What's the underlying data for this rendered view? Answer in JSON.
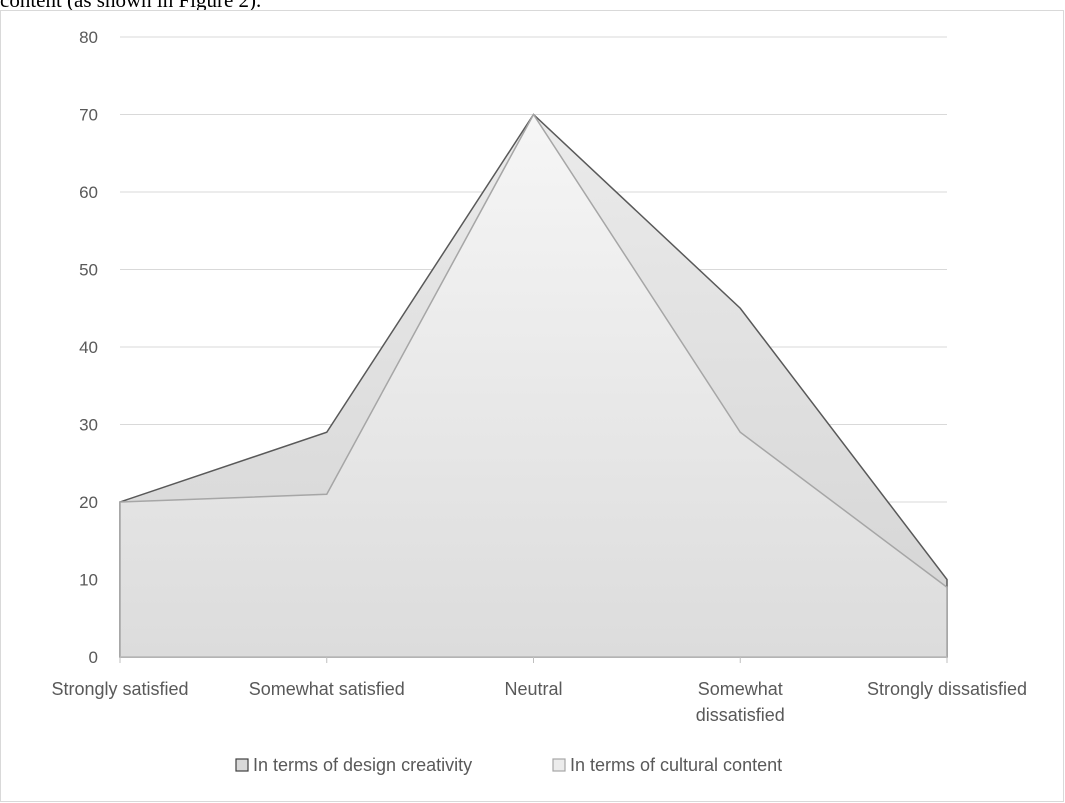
{
  "page": {
    "top_text": "content (as shown in Figure 2)."
  },
  "chart_data": {
    "type": "area",
    "categories": [
      "Strongly satisfied",
      "Somewhat satisfied",
      "Neutral",
      "Somewhat dissatisfied",
      "Strongly dissatisfied"
    ],
    "category_lines": [
      [
        "Strongly satisfied"
      ],
      [
        "Somewhat satisfied"
      ],
      [
        "Neutral"
      ],
      [
        "Somewhat",
        "dissatisfied"
      ],
      [
        "Strongly dissatisfied"
      ]
    ],
    "series": [
      {
        "name": "In terms of design creativity",
        "values": [
          20,
          29,
          70,
          45,
          10
        ],
        "color": "#d9d9d9",
        "line": "#595959"
      },
      {
        "name": "In terms of cultural content",
        "values": [
          20,
          21,
          70,
          29,
          9
        ],
        "color": "#ececec",
        "line": "#a6a6a6"
      }
    ],
    "yticks": [
      0,
      10,
      20,
      30,
      40,
      50,
      60,
      70,
      80
    ],
    "ylim": [
      0,
      80
    ],
    "grid": true,
    "legend": "bottom",
    "title": "",
    "xlabel": "",
    "ylabel": ""
  }
}
